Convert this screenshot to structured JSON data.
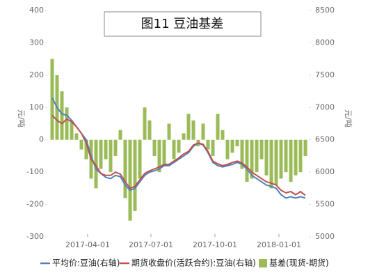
{
  "chart_data": {
    "type": "combo",
    "title": "图11 豆油基差",
    "y_label": "元/吨",
    "y2_label": "元/吨",
    "x": [
      "2017-02-09",
      "2017-02-16",
      "2017-02-23",
      "2017-03-02",
      "2017-03-09",
      "2017-03-16",
      "2017-03-23",
      "2017-03-30",
      "2017-04-06",
      "2017-04-13",
      "2017-04-20",
      "2017-04-27",
      "2017-05-04",
      "2017-05-11",
      "2017-05-18",
      "2017-05-25",
      "2017-06-01",
      "2017-06-08",
      "2017-06-15",
      "2017-06-22",
      "2017-06-29",
      "2017-07-06",
      "2017-07-13",
      "2017-07-20",
      "2017-07-27",
      "2017-08-03",
      "2017-08-10",
      "2017-08-17",
      "2017-08-24",
      "2017-08-31",
      "2017-09-07",
      "2017-09-14",
      "2017-09-21",
      "2017-09-28",
      "2017-10-05",
      "2017-10-12",
      "2017-10-19",
      "2017-10-26",
      "2017-11-02",
      "2017-11-09",
      "2017-11-16",
      "2017-11-23",
      "2017-11-30",
      "2017-12-07",
      "2017-12-14",
      "2017-12-21",
      "2017-12-28",
      "2018-01-04",
      "2018-01-11",
      "2018-01-18",
      "2018-01-25",
      "2018-02-01",
      "2018-02-08"
    ],
    "xlim": [
      "2017-01-30",
      "2018-02-16"
    ],
    "xticks": [
      "2017-04-01",
      "2017-07-01",
      "2017-10-01",
      "2018-01-01"
    ],
    "ylim": [
      -300,
      400
    ],
    "yticks": [
      -300,
      -200,
      -100,
      0,
      100,
      200,
      300,
      400
    ],
    "y2lim": [
      5000,
      8500
    ],
    "y2ticks": [
      5000,
      5500,
      6000,
      6500,
      7000,
      7500,
      8000,
      8500
    ],
    "series": [
      {
        "name": "平均价:豆油(右轴)",
        "type": "line",
        "axis": "y2",
        "color": "#4f81bd",
        "values": [
          7150,
          7000,
          6900,
          6880,
          6800,
          6700,
          6600,
          6500,
          6250,
          6050,
          5980,
          5920,
          5900,
          5950,
          5930,
          5800,
          5720,
          5750,
          5850,
          5950,
          6000,
          6020,
          6050,
          6100,
          6100,
          6150,
          6200,
          6250,
          6300,
          6400,
          6450,
          6420,
          6300,
          6150,
          6100,
          6080,
          6100,
          6120,
          6150,
          6120,
          6050,
          5950,
          5900,
          5850,
          5800,
          5780,
          5750,
          5650,
          5600,
          5620,
          5600,
          5620,
          5600
        ]
      },
      {
        "name": "期货收盘价(活跃合约):豆油(右轴)",
        "type": "line",
        "axis": "y2",
        "color": "#c0504d",
        "values": [
          6880,
          6800,
          6750,
          6820,
          6780,
          6700,
          6600,
          6450,
          6200,
          6100,
          5980,
          5950,
          5950,
          6000,
          5970,
          5850,
          5750,
          5780,
          5880,
          5980,
          6020,
          6050,
          6080,
          6120,
          6120,
          6170,
          6220,
          6280,
          6320,
          6420,
          6450,
          6430,
          6320,
          6170,
          6130,
          6100,
          6120,
          6150,
          6170,
          6140,
          6080,
          6000,
          5950,
          5900,
          5850,
          5830,
          5800,
          5720,
          5680,
          5700,
          5650,
          5700,
          5640
        ]
      },
      {
        "name": "基差(现货-期货)",
        "type": "bar",
        "color": "#9bbb59",
        "values": [
          250,
          200,
          150,
          100,
          60,
          20,
          -30,
          -60,
          -120,
          -150,
          -90,
          -60,
          -100,
          -50,
          30,
          -180,
          -250,
          -220,
          -120,
          100,
          60,
          -50,
          -100,
          -80,
          50,
          -60,
          -40,
          20,
          80,
          60,
          -20,
          50,
          -30,
          -50,
          80,
          30,
          -60,
          -40,
          -20,
          -90,
          -130,
          -120,
          -100,
          -60,
          -110,
          -150,
          -140,
          -120,
          -100,
          -130,
          -110,
          -100,
          -50
        ]
      }
    ]
  }
}
